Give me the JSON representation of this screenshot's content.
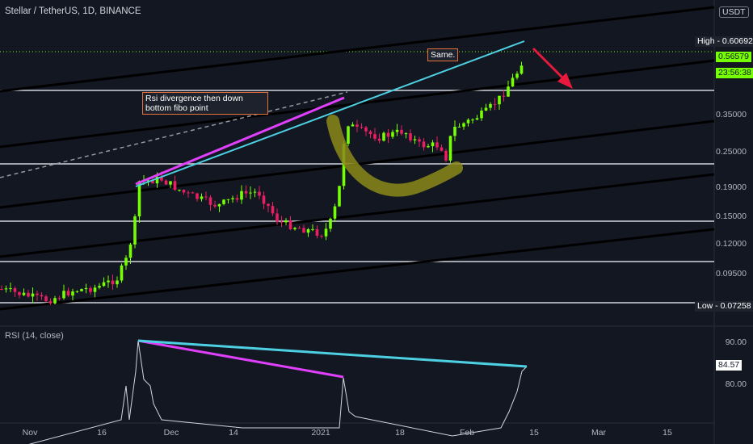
{
  "header": {
    "title": "Stellar / TetherUS, 1D, BINANCE",
    "currency": "USDT",
    "top_label_partial": "0"
  },
  "price_axis": {
    "ticks": [
      "0.35000",
      "0.25000",
      "0.19000",
      "0.15000",
      "0.12000",
      "0.09500"
    ],
    "high_label": "High - 0.60692",
    "current_price": "0.56579",
    "countdown": "23:56:38",
    "low_label": "Low - 0.07258"
  },
  "rsi": {
    "title": "RSI (14, close)",
    "ticks": [
      "90.00",
      "80.00"
    ],
    "value": "84.57"
  },
  "time_axis": {
    "labels": [
      "Nov",
      "16",
      "Dec",
      "14",
      "2021",
      "18",
      "Feb",
      "15",
      "Mar",
      "15"
    ]
  },
  "annotations": {
    "divergence_note": "Rsi divergence then down bottom fibo point",
    "same_note": "Same."
  },
  "colors": {
    "background": "#131722",
    "up_candle": "#76ff03",
    "down_candle": "#e91e63",
    "cyan_line": "#4dd0e1",
    "magenta_line": "#e040fb",
    "red_arrow": "#e8193c",
    "high_badge": "#1e222d",
    "current_badge": "#76ff03",
    "annotation_border": "#e8703a",
    "highlight_stroke": "#8b8a1a"
  }
}
